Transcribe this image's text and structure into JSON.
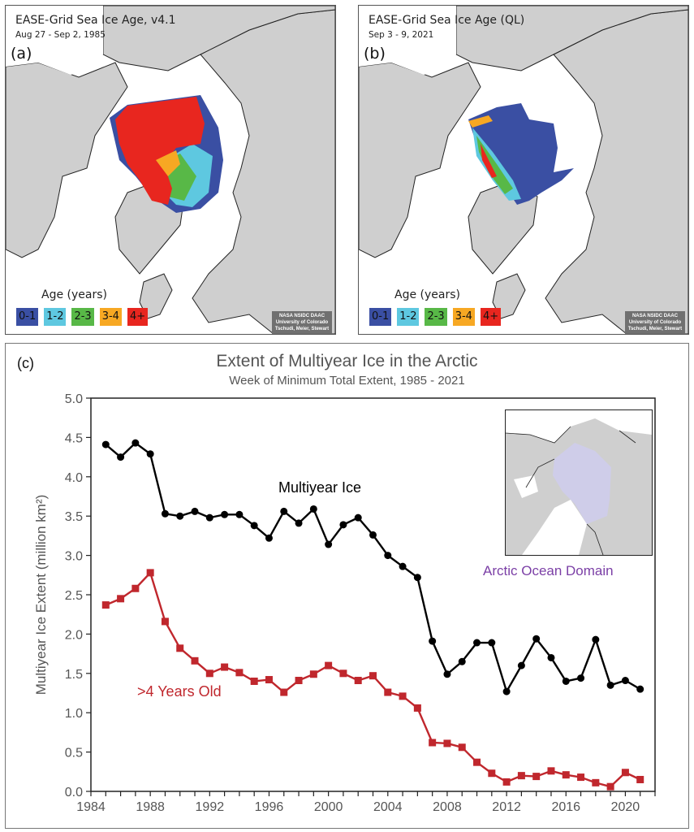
{
  "panel_a": {
    "letter": "(a)",
    "title": "EASE-Grid Sea Ice Age, v4.1",
    "subtitle": "Aug 27 - Sep 2, 1985",
    "legend_title": "Age (years)",
    "legend": [
      {
        "label": "0-1",
        "color": "#3a4fa3"
      },
      {
        "label": "1-2",
        "color": "#5ec8e0"
      },
      {
        "label": "2-3",
        "color": "#58b847"
      },
      {
        "label": "3-4",
        "color": "#f7a823"
      },
      {
        "label": "4+",
        "color": "#e8261f"
      }
    ],
    "credit": [
      "NASA NSIDC DAAC",
      "University of Colorado",
      "Tschudi, Meier, Stewart"
    ]
  },
  "panel_b": {
    "letter": "(b)",
    "title": "EASE-Grid Sea Ice Age (QL)",
    "subtitle": "Sep 3 - 9, 2021",
    "legend_title": "Age (years)",
    "legend": [
      {
        "label": "0-1",
        "color": "#3a4fa3"
      },
      {
        "label": "1-2",
        "color": "#5ec8e0"
      },
      {
        "label": "2-3",
        "color": "#58b847"
      },
      {
        "label": "3-4",
        "color": "#f7a823"
      },
      {
        "label": "4+",
        "color": "#e8261f"
      }
    ],
    "credit": [
      "NASA NSIDC DAAC",
      "University of Colorado",
      "Tschudi, Meier, Stewart"
    ]
  },
  "panel_c": {
    "letter": "(c)",
    "inset_label": "Arctic Ocean Domain"
  },
  "chart_data": {
    "type": "line",
    "title": "Extent of Multiyear Ice in the Arctic",
    "subtitle": "Week of Minimum Total Extent, 1985 - 2021",
    "xlabel": "",
    "ylabel": "Multiyear Ice Extent (million km²)",
    "xlim": [
      1984,
      2022
    ],
    "ylim": [
      0.0,
      5.0
    ],
    "xticks": [
      1984,
      1988,
      1992,
      1996,
      2000,
      2004,
      2008,
      2012,
      2016,
      2020
    ],
    "yticks": [
      "0.0",
      "0.5",
      "1.0",
      "1.5",
      "2.0",
      "2.5",
      "3.0",
      "3.5",
      "4.0",
      "4.5",
      "5.0"
    ],
    "grid": false,
    "x": [
      1985,
      1986,
      1987,
      1988,
      1989,
      1990,
      1991,
      1992,
      1993,
      1994,
      1995,
      1996,
      1997,
      1998,
      1999,
      2000,
      2001,
      2002,
      2003,
      2004,
      2005,
      2006,
      2007,
      2008,
      2009,
      2010,
      2011,
      2012,
      2013,
      2014,
      2015,
      2016,
      2017,
      2018,
      2019,
      2020,
      2021
    ],
    "series": [
      {
        "name": "Multiyear Ice",
        "label": "Multiyear Ice",
        "color": "#000000",
        "marker": "circle",
        "values": [
          4.41,
          4.25,
          4.43,
          4.29,
          3.53,
          3.5,
          3.56,
          3.48,
          3.52,
          3.52,
          3.38,
          3.22,
          3.56,
          3.41,
          3.59,
          3.14,
          3.39,
          3.48,
          3.26,
          3.0,
          2.86,
          2.72,
          1.91,
          1.49,
          1.65,
          1.89,
          1.89,
          1.27,
          1.6,
          1.94,
          1.7,
          1.4,
          1.44,
          1.93,
          1.35,
          1.41,
          1.3
        ]
      },
      {
        "name": ">4 Years Old",
        "label": ">4 Years Old",
        "color": "#c0272d",
        "marker": "square",
        "values": [
          2.37,
          2.45,
          2.58,
          2.78,
          2.16,
          1.82,
          1.66,
          1.5,
          1.58,
          1.51,
          1.4,
          1.42,
          1.26,
          1.41,
          1.49,
          1.6,
          1.5,
          1.41,
          1.47,
          1.26,
          1.21,
          1.06,
          0.62,
          0.61,
          0.56,
          0.37,
          0.23,
          0.12,
          0.2,
          0.19,
          0.26,
          0.21,
          0.18,
          0.11,
          0.06,
          0.24,
          0.15
        ]
      }
    ]
  }
}
